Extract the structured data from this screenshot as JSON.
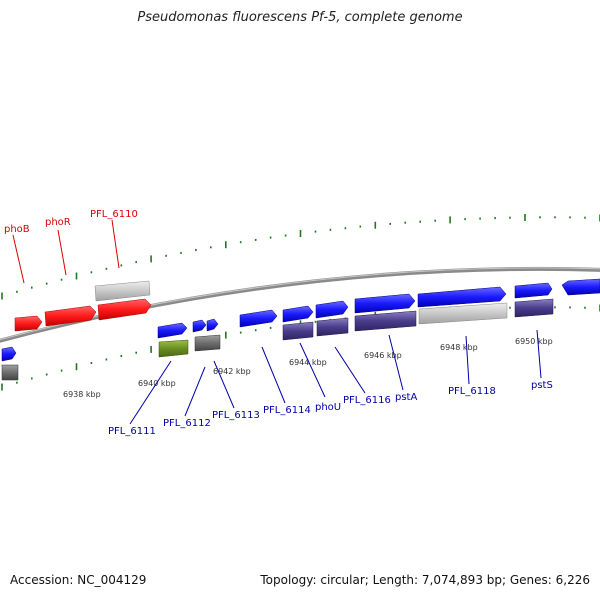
{
  "title": "Pseudomonas fluorescens Pf-5, complete genome",
  "footer": {
    "accession": "Accession: NC_004129",
    "stats": "Topology: circular; Length: 7,074,893 bp; Genes: 6,226"
  },
  "colors": {
    "top_strand_gene": "#ff1a1a",
    "forward_gene": "#1a1aff",
    "reverse_gene": "#4a3c8c",
    "gray_gene": "#c8c8c8",
    "dark_gray_gene": "#6e6e6e",
    "green_gene": "#6b8e23",
    "tick": "#1e7a1e",
    "backbone": "#7a7a7a",
    "red_label": "#dd0000",
    "blue_label": "#0000aa"
  },
  "tick_labels": [
    "6938 kbp",
    "6940 kbp",
    "6942 kbp",
    "6944 kbp",
    "6946 kbp",
    "6948 kbp",
    "6950 kbp"
  ],
  "gene_labels_top": [
    "phoB",
    "phoR",
    "PFL_6110"
  ],
  "gene_labels_bottom": [
    "PFL_6111",
    "PFL_6112",
    "PFL_6113",
    "PFL_6114",
    "phoU",
    "PFL_6116",
    "pstA",
    "PFL_6118",
    "pstS"
  ]
}
